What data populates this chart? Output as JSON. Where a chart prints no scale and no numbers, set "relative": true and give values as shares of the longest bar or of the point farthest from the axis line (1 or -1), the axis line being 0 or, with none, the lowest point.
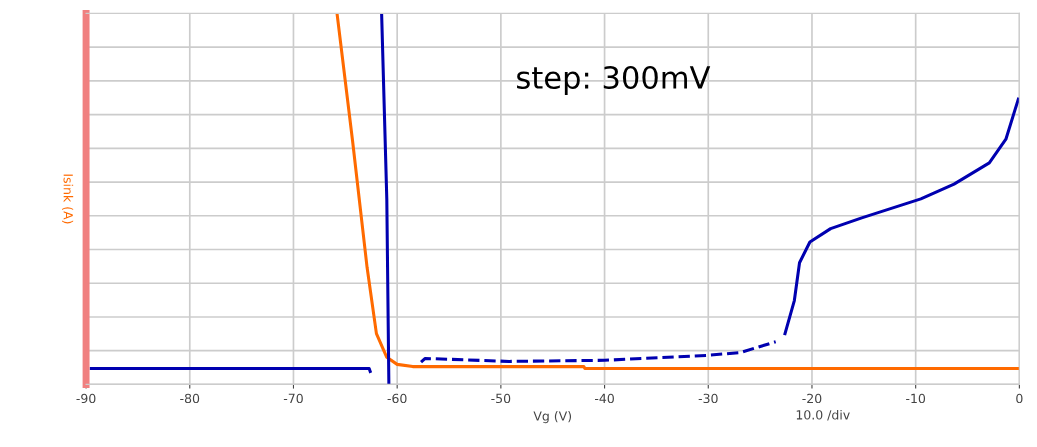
{
  "chart_data": {
    "type": "line",
    "relative": true,
    "xlabel": "Vg (V)",
    "ylabel": "Isink (A)",
    "xlim": [
      -90,
      0
    ],
    "xticks": [
      -90,
      -80,
      -70,
      -60,
      -50,
      -40,
      -30,
      -20,
      -10,
      0
    ],
    "tick_labels": "x",
    "grid": true,
    "annotations": [
      "step: 300mV",
      "10.0 /div"
    ],
    "series": [
      {
        "color": "#ff6a00",
        "x": [
          -65.8,
          -64.3,
          -62.9,
          -62.0,
          -61.0,
          -60.0,
          -58.5,
          -42.0,
          -41.9,
          -0.1
        ],
        "values": [
          1,
          0.656,
          0.315,
          0.137,
          0.073,
          0.054,
          0.048,
          0.048,
          0.043,
          0.043
        ]
      },
      {
        "color": "#0000b0",
        "x": [
          -89.5,
          -62.7,
          -62.6,
          null,
          -60.8,
          -61.0,
          -61.5
        ],
        "values": [
          0.043,
          0.043,
          0.035,
          null,
          0,
          0.5,
          1
        ]
      },
      {
        "color": "#0000b0",
        "line_style": "dashed",
        "x": [
          -57.7,
          -57.3,
          -49.2,
          -40,
          -30.2,
          -26.9,
          -23.5
        ],
        "values": [
          0.06,
          0.07,
          0.062,
          0.065,
          0.078,
          0.086,
          0.115
        ]
      },
      {
        "color": "#0000b0",
        "x": [
          -22.6,
          -21.7,
          -21.2,
          -20.2,
          -18.2,
          -15.2,
          -9.5,
          -6.3,
          -2.9,
          -1.3,
          -0.1
        ],
        "values": [
          0.137,
          0.226,
          0.328,
          0.384,
          0.42,
          0.449,
          0.5,
          0.54,
          0.597,
          0.661,
          0.769
        ]
      }
    ]
  }
}
